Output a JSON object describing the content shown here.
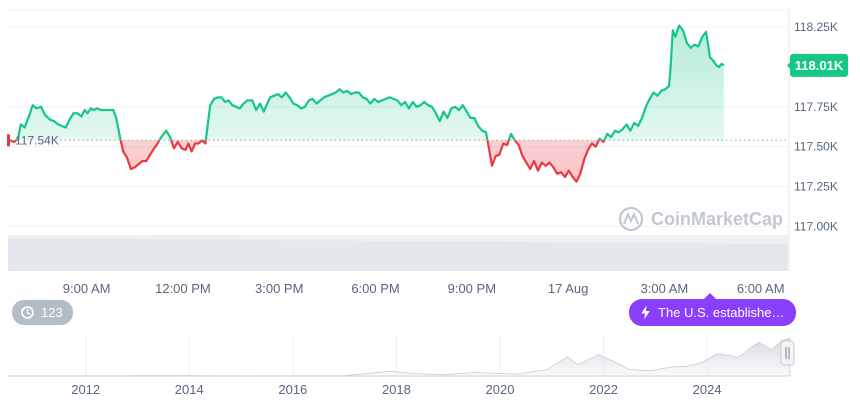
{
  "chart_data": [
    {
      "type": "line",
      "baseline": 117.54,
      "baseline_label": "117.54K",
      "current_label": "118.01K",
      "y_ticks": [
        "118.25K",
        "117.75K",
        "117.50K",
        "117.25K",
        "117.00K"
      ],
      "y_tick_values": [
        118.25,
        117.75,
        117.5,
        117.25,
        117.0
      ],
      "ylim": [
        116.72,
        118.37
      ],
      "x_ticks": [
        "9:00 AM",
        "12:00 PM",
        "3:00 PM",
        "6:00 PM",
        "9:00 PM",
        "17 Aug",
        "3:00 AM",
        "6:00 AM"
      ],
      "x_tick_hours": [
        9,
        12,
        15,
        18,
        21,
        24,
        27,
        30
      ],
      "x_range_hours": [
        6.55,
        30.85
      ],
      "up_color": "#16c784",
      "down_color": "#ea3943",
      "points": [
        [
          6.55,
          117.52
        ],
        [
          6.62,
          117.54
        ],
        [
          6.74,
          117.53
        ],
        [
          6.86,
          117.55
        ],
        [
          6.95,
          117.64
        ],
        [
          7.07,
          117.62
        ],
        [
          7.2,
          117.69
        ],
        [
          7.32,
          117.76
        ],
        [
          7.44,
          117.74
        ],
        [
          7.58,
          117.75
        ],
        [
          7.7,
          117.7
        ],
        [
          7.86,
          117.67
        ],
        [
          7.99,
          117.66
        ],
        [
          8.11,
          117.64
        ],
        [
          8.23,
          117.63
        ],
        [
          8.35,
          117.62
        ],
        [
          8.47,
          117.67
        ],
        [
          8.59,
          117.71
        ],
        [
          8.71,
          117.71
        ],
        [
          8.84,
          117.69
        ],
        [
          8.94,
          117.73
        ],
        [
          9.03,
          117.71
        ],
        [
          9.13,
          117.74
        ],
        [
          9.22,
          117.73
        ],
        [
          9.33,
          117.74
        ],
        [
          9.45,
          117.73
        ],
        [
          9.57,
          117.73
        ],
        [
          9.69,
          117.73
        ],
        [
          9.83,
          117.73
        ],
        [
          9.92,
          117.68
        ],
        [
          10.04,
          117.56
        ],
        [
          10.14,
          117.47
        ],
        [
          10.26,
          117.43
        ],
        [
          10.38,
          117.36
        ],
        [
          10.5,
          117.37
        ],
        [
          10.62,
          117.39
        ],
        [
          10.74,
          117.41
        ],
        [
          10.86,
          117.41
        ],
        [
          10.98,
          117.45
        ],
        [
          11.07,
          117.48
        ],
        [
          11.18,
          117.51
        ],
        [
          11.26,
          117.54
        ],
        [
          11.36,
          117.57
        ],
        [
          11.48,
          117.6
        ],
        [
          11.6,
          117.56
        ],
        [
          11.72,
          117.49
        ],
        [
          11.84,
          117.53
        ],
        [
          11.96,
          117.49
        ],
        [
          12.08,
          117.48
        ],
        [
          12.17,
          117.52
        ],
        [
          12.27,
          117.47
        ],
        [
          12.38,
          117.52
        ],
        [
          12.48,
          117.52
        ],
        [
          12.6,
          117.54
        ],
        [
          12.7,
          117.52
        ],
        [
          12.85,
          117.76
        ],
        [
          12.97,
          117.8
        ],
        [
          13.09,
          117.81
        ],
        [
          13.2,
          117.81
        ],
        [
          13.31,
          117.78
        ],
        [
          13.42,
          117.79
        ],
        [
          13.54,
          117.76
        ],
        [
          13.66,
          117.75
        ],
        [
          13.77,
          117.74
        ],
        [
          13.89,
          117.77
        ],
        [
          14.01,
          117.79
        ],
        [
          14.16,
          117.79
        ],
        [
          14.28,
          117.73
        ],
        [
          14.4,
          117.77
        ],
        [
          14.52,
          117.72
        ],
        [
          14.6,
          117.76
        ],
        [
          14.72,
          117.81
        ],
        [
          14.84,
          117.82
        ],
        [
          14.96,
          117.83
        ],
        [
          15.08,
          117.81
        ],
        [
          15.2,
          117.84
        ],
        [
          15.32,
          117.81
        ],
        [
          15.44,
          117.77
        ],
        [
          15.56,
          117.76
        ],
        [
          15.68,
          117.74
        ],
        [
          15.8,
          117.75
        ],
        [
          15.92,
          117.79
        ],
        [
          16.04,
          117.8
        ],
        [
          16.16,
          117.77
        ],
        [
          16.28,
          117.79
        ],
        [
          16.4,
          117.81
        ],
        [
          16.52,
          117.82
        ],
        [
          16.64,
          117.83
        ],
        [
          16.76,
          117.84
        ],
        [
          16.88,
          117.86
        ],
        [
          17.0,
          117.84
        ],
        [
          17.12,
          117.85
        ],
        [
          17.24,
          117.83
        ],
        [
          17.36,
          117.84
        ],
        [
          17.48,
          117.84
        ],
        [
          17.6,
          117.81
        ],
        [
          17.72,
          117.8
        ],
        [
          17.84,
          117.77
        ],
        [
          17.96,
          117.8
        ],
        [
          18.08,
          117.78
        ],
        [
          18.2,
          117.79
        ],
        [
          18.32,
          117.8
        ],
        [
          18.44,
          117.81
        ],
        [
          18.56,
          117.8
        ],
        [
          18.68,
          117.79
        ],
        [
          18.8,
          117.76
        ],
        [
          18.92,
          117.78
        ],
        [
          19.04,
          117.74
        ],
        [
          19.16,
          117.78
        ],
        [
          19.28,
          117.75
        ],
        [
          19.4,
          117.76
        ],
        [
          19.52,
          117.78
        ],
        [
          19.64,
          117.76
        ],
        [
          19.76,
          117.75
        ],
        [
          19.88,
          117.71
        ],
        [
          20.0,
          117.66
        ],
        [
          20.12,
          117.72
        ],
        [
          20.24,
          117.68
        ],
        [
          20.36,
          117.74
        ],
        [
          20.48,
          117.75
        ],
        [
          20.6,
          117.73
        ],
        [
          20.72,
          117.76
        ],
        [
          20.84,
          117.72
        ],
        [
          20.96,
          117.68
        ],
        [
          21.08,
          117.68
        ],
        [
          21.2,
          117.63
        ],
        [
          21.32,
          117.6
        ],
        [
          21.44,
          117.59
        ],
        [
          21.56,
          117.46
        ],
        [
          21.63,
          117.38
        ],
        [
          21.74,
          117.44
        ],
        [
          21.86,
          117.45
        ],
        [
          21.98,
          117.52
        ],
        [
          22.1,
          117.51
        ],
        [
          22.22,
          117.58
        ],
        [
          22.34,
          117.54
        ],
        [
          22.46,
          117.51
        ],
        [
          22.58,
          117.44
        ],
        [
          22.7,
          117.4
        ],
        [
          22.82,
          117.36
        ],
        [
          22.94,
          117.41
        ],
        [
          23.06,
          117.35
        ],
        [
          23.18,
          117.4
        ],
        [
          23.3,
          117.38
        ],
        [
          23.42,
          117.4
        ],
        [
          23.54,
          117.37
        ],
        [
          23.66,
          117.33
        ],
        [
          23.78,
          117.34
        ],
        [
          23.9,
          117.31
        ],
        [
          24.02,
          117.35
        ],
        [
          24.14,
          117.31
        ],
        [
          24.26,
          117.28
        ],
        [
          24.38,
          117.33
        ],
        [
          24.5,
          117.42
        ],
        [
          24.62,
          117.48
        ],
        [
          24.74,
          117.52
        ],
        [
          24.86,
          117.5
        ],
        [
          24.98,
          117.55
        ],
        [
          25.1,
          117.53
        ],
        [
          25.22,
          117.58
        ],
        [
          25.34,
          117.56
        ],
        [
          25.46,
          117.6
        ],
        [
          25.58,
          117.59
        ],
        [
          25.7,
          117.61
        ],
        [
          25.82,
          117.64
        ],
        [
          25.94,
          117.6
        ],
        [
          26.06,
          117.65
        ],
        [
          26.18,
          117.63
        ],
        [
          26.3,
          117.68
        ],
        [
          26.42,
          117.75
        ],
        [
          26.54,
          117.8
        ],
        [
          26.66,
          117.84
        ],
        [
          26.78,
          117.82
        ],
        [
          26.9,
          117.85
        ],
        [
          27.02,
          117.86
        ],
        [
          27.14,
          117.88
        ],
        [
          27.18,
          117.96
        ],
        [
          27.26,
          118.23
        ],
        [
          27.34,
          118.19
        ],
        [
          27.46,
          118.26
        ],
        [
          27.58,
          118.23
        ],
        [
          27.7,
          118.15
        ],
        [
          27.82,
          118.12
        ],
        [
          27.94,
          118.14
        ],
        [
          28.06,
          118.13
        ],
        [
          28.18,
          118.19
        ],
        [
          28.3,
          118.22
        ],
        [
          28.42,
          118.06
        ],
        [
          28.52,
          118.04
        ],
        [
          28.62,
          118.01
        ],
        [
          28.7,
          118.0
        ],
        [
          28.78,
          118.02
        ],
        [
          28.85,
          118.01
        ]
      ]
    },
    {
      "type": "area",
      "x_ticks": [
        "2012",
        "2014",
        "2016",
        "2018",
        "2020",
        "2022",
        "2024"
      ],
      "x_tick_years": [
        2012,
        2014,
        2016,
        2018,
        2020,
        2022,
        2024
      ],
      "x_range_years": [
        2010.5,
        2025.6
      ],
      "ylim": [
        0,
        124000
      ],
      "points": [
        [
          2010.5,
          0.1
        ],
        [
          2013.0,
          0.8
        ],
        [
          2013.9,
          1.0
        ],
        [
          2015.0,
          0.3
        ],
        [
          2016.0,
          0.5
        ],
        [
          2017.0,
          1.0
        ],
        [
          2017.9,
          15.0
        ],
        [
          2018.3,
          8.0
        ],
        [
          2018.9,
          3.7
        ],
        [
          2019.5,
          11.0
        ],
        [
          2020.0,
          8.0
        ],
        [
          2020.3,
          6.0
        ],
        [
          2020.9,
          19.0
        ],
        [
          2021.1,
          40.0
        ],
        [
          2021.3,
          60.0
        ],
        [
          2021.5,
          35.0
        ],
        [
          2021.8,
          58.0
        ],
        [
          2021.9,
          66.0
        ],
        [
          2022.2,
          45.0
        ],
        [
          2022.5,
          20.0
        ],
        [
          2022.9,
          16.0
        ],
        [
          2023.3,
          28.0
        ],
        [
          2023.6,
          30.0
        ],
        [
          2023.9,
          42.0
        ],
        [
          2024.2,
          70.0
        ],
        [
          2024.6,
          58.0
        ],
        [
          2024.9,
          95.0
        ],
        [
          2025.0,
          104.0
        ],
        [
          2025.25,
          82.0
        ],
        [
          2025.45,
          110.0
        ],
        [
          2025.6,
          118.0
        ]
      ]
    }
  ],
  "watermark": "CoinMarketCap",
  "events_pill": {
    "count": "123",
    "icon": "history-icon"
  },
  "news_pill": {
    "text": "The U.S. establishe…",
    "icon": "lightning-icon"
  },
  "colors": {
    "accent_news": "#8a3ffc",
    "current_badge": "#16c784",
    "pill_grey": "#b4bcc8"
  }
}
